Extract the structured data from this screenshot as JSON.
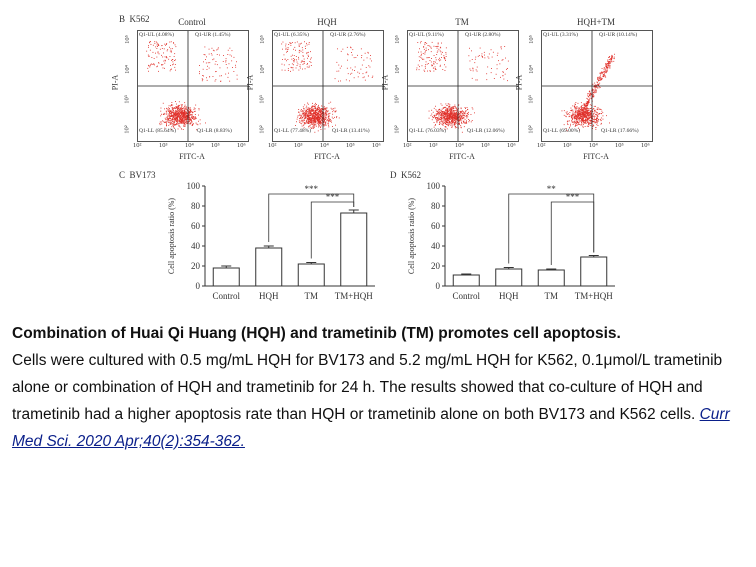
{
  "figure": {
    "panel_b": {
      "label": "B",
      "cell_line": "K562",
      "x_axis_label": "FITC-A",
      "y_axis_label": "PI-A",
      "x_ticks": [
        "10²",
        "10³",
        "10⁴",
        "10⁵",
        "10⁶"
      ],
      "y_ticks": [
        "10²",
        "10³",
        "10⁴",
        "10⁵"
      ],
      "plots": [
        {
          "title": "Control",
          "ul": "Q1-UL (4.08%)",
          "ur": "Q1-UR (1.45%)",
          "ll": "Q1-LL (85.64%)",
          "lr": "Q1-LR (8.83%)"
        },
        {
          "title": "HQH",
          "ul": "Q1-UL (6.35%)",
          "ur": "Q1-UR (2.76%)",
          "ll": "Q1-LL (77.48%)",
          "lr": "Q1-LR (13.41%)"
        },
        {
          "title": "TM",
          "ul": "Q1-UL (9.11%)",
          "ur": "Q1-UR (2.80%)",
          "ll": "Q1-LL (76.03%)",
          "lr": "Q1-LR (12.06%)"
        },
        {
          "title": "HQH+TM",
          "ul": "Q1-UL (3.31%)",
          "ur": "Q1-UR (10.14%)",
          "ll": "Q1-LL (69.00%)",
          "lr": "Q1-LR (17.66%)"
        }
      ]
    },
    "chart_data": [
      {
        "type": "bar",
        "panel": "C",
        "title": "BV173",
        "ylabel": "Cell apoptosis ratio (%)",
        "categories": [
          "Control",
          "HQH",
          "TM",
          "TM+HQH"
        ],
        "values": [
          18,
          38,
          22,
          73
        ],
        "errors": [
          2,
          2,
          1.5,
          3
        ],
        "ylim": [
          0,
          100
        ],
        "yticks": [
          0,
          20,
          40,
          60,
          80,
          100
        ],
        "significance": [
          {
            "from": "HQH",
            "to": "TM+HQH",
            "label": "***"
          },
          {
            "from": "TM",
            "to": "TM+HQH",
            "label": "***"
          }
        ]
      },
      {
        "type": "bar",
        "panel": "D",
        "title": "K562",
        "ylabel": "Cell apoptosis ratio (%)",
        "categories": [
          "Control",
          "HQH",
          "TM",
          "TM+HQH"
        ],
        "values": [
          11,
          17,
          16,
          29
        ],
        "errors": [
          1,
          1.5,
          1,
          1.5
        ],
        "ylim": [
          0,
          100
        ],
        "yticks": [
          0,
          20,
          40,
          60,
          80,
          100
        ],
        "significance": [
          {
            "from": "HQH",
            "to": "TM+HQH",
            "label": "**"
          },
          {
            "from": "TM",
            "to": "TM+HQH",
            "label": "***"
          }
        ]
      }
    ]
  },
  "caption": {
    "title": "Combination of Huai Qi Huang (HQH) and trametinib (TM) promotes cell apoptosis.",
    "body": "Cells were cultured with 0.5 mg/mL HQH for BV173 and 5.2 mg/mL HQH for K562, 0.1μmol/L trametinib alone or combination of HQH and trametinib for 24 h. The results showed that co-culture of HQH and trametinib had a higher apoptosis rate than HQH or trametinib alone on both BV173 and K562 cells. ",
    "citation": "Curr Med Sci. 2020 Apr;40(2):354-362."
  },
  "colors": {
    "dots": "#e0302a",
    "axis": "#555555",
    "text": "#111111",
    "link": "#0a1f8a"
  }
}
